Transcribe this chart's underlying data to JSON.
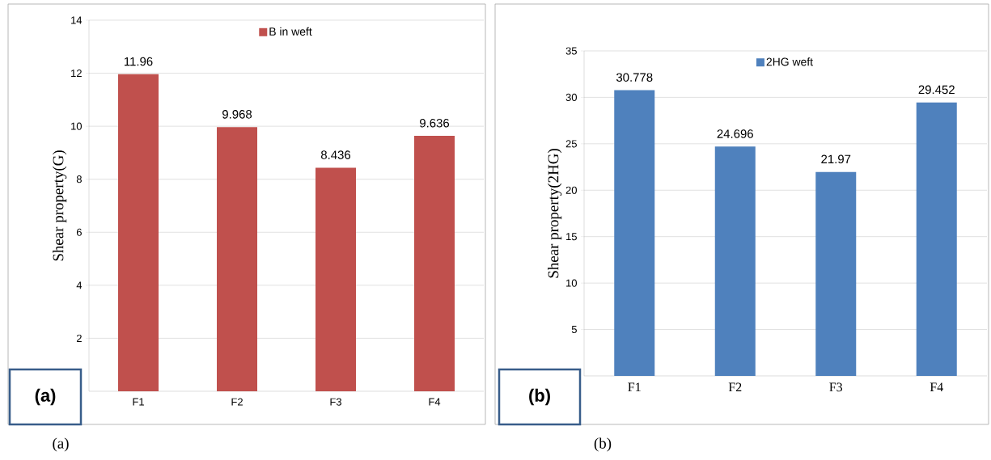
{
  "chart_data": [
    {
      "type": "bar",
      "categories": [
        "F1",
        "F2",
        "F3",
        "F4"
      ],
      "series": [
        {
          "name": "B in weft",
          "color": "#c0504d",
          "values": [
            11.96,
            9.968,
            8.436,
            9.636
          ]
        }
      ],
      "ylabel": "Shear property(G)",
      "ylim": [
        0,
        14
      ],
      "yticks": [
        2,
        4,
        6,
        8,
        10,
        12,
        14
      ],
      "grid": "y",
      "legend": "top",
      "data_labels": true,
      "annotations": [
        "(a)",
        "(a)"
      ]
    },
    {
      "type": "bar",
      "categories": [
        "F1",
        "F2",
        "F3",
        "F4"
      ],
      "series": [
        {
          "name": "2HG weft",
          "color": "#4f81bd",
          "values": [
            30.778,
            24.696,
            21.97,
            29.452
          ]
        }
      ],
      "ylabel": "Shear property(2HG)",
      "ylim": [
        0,
        35
      ],
      "yticks": [
        5,
        10,
        15,
        20,
        25,
        30,
        35
      ],
      "grid": "y",
      "legend": "top",
      "data_labels": true,
      "annotations": [
        "(b)",
        "(b)"
      ]
    }
  ]
}
